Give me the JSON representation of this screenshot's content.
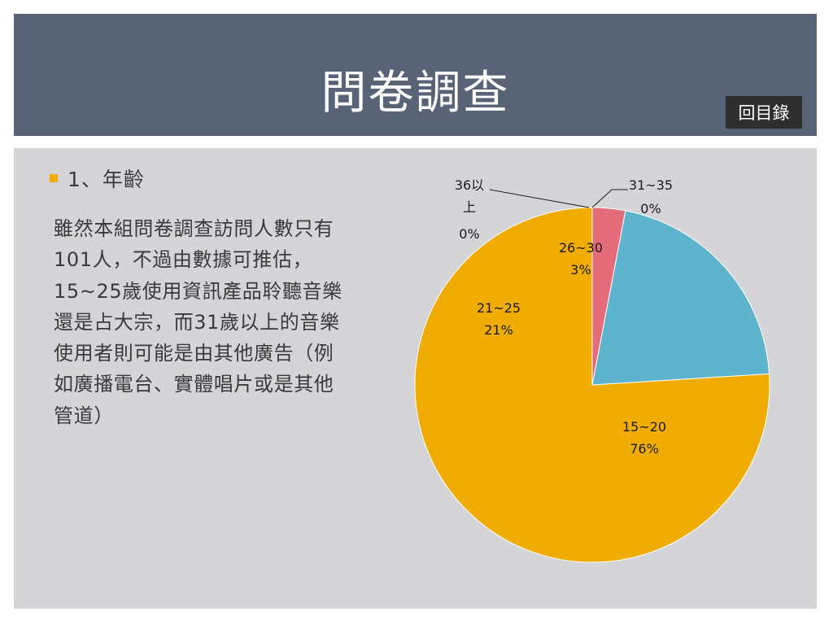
{
  "slide": {
    "title": "問卷調查",
    "toc_button": "回目錄",
    "bullet": "1、年齡",
    "body": "雖然本組問卷調查訪問人數只有101人，不過由數據可推估，15~25歲使用資訊產品聆聽音樂還是占大宗，而31歲以上的音樂使用者則可能是由其他廣告（例如廣播電台、實體唱片或是其他管道）"
  },
  "colors": {
    "header_bg": "#586377",
    "content_bg": "#d5d5d8",
    "accent": "#f0ac00"
  },
  "chart_data": {
    "type": "pie",
    "title": "",
    "slices": [
      {
        "name": "15~20",
        "value": 76,
        "label": "76%",
        "color": "#f0ac00"
      },
      {
        "name": "21~25",
        "value": 21,
        "label": "21%",
        "color": "#5eb4cc"
      },
      {
        "name": "26~30",
        "value": 3,
        "label": "3%",
        "color": "#e46c7a"
      },
      {
        "name": "31~35",
        "value": 0,
        "label": "0%",
        "color": "#888888"
      },
      {
        "name": "36以上",
        "value": 0,
        "label": "0%",
        "color": "#888888"
      }
    ]
  }
}
